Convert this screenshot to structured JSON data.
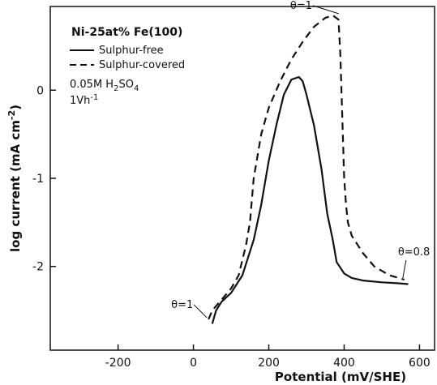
{
  "chart_data": {
    "type": "line",
    "title": "",
    "xlabel": "Potential (mV/SHE)",
    "ylabel_main": "log current (mA cm",
    "ylabel_sup": "-2",
    "ylabel_end": ")",
    "xlim": [
      -380,
      640
    ],
    "ylim": [
      -2.95,
      0.95
    ],
    "x_ticks": [
      -200,
      0,
      200,
      400,
      600
    ],
    "x_tick_labels": [
      "-200",
      "0",
      "200",
      "400",
      "600"
    ],
    "y_ticks": [
      0,
      -1,
      -2
    ],
    "y_tick_labels": [
      "0",
      "-1",
      "-2"
    ],
    "grid": false,
    "legend": {
      "placement": "top-left",
      "title": "Ni-25at% Fe(100)",
      "entries": [
        {
          "label": "Sulphur-free",
          "style": "solid"
        },
        {
          "label": "Sulphur-covered",
          "style": "dashed"
        }
      ],
      "conditions": [
        {
          "text": "0.05M H",
          "sub": "2",
          "rest": "SO",
          "sub2": "4"
        },
        {
          "text": "1Vh",
          "sup": "-1"
        }
      ]
    },
    "series": [
      {
        "name": "Sulphur-free",
        "style": "solid",
        "x": [
          50,
          60,
          75,
          100,
          130,
          160,
          180,
          200,
          220,
          240,
          260,
          280,
          290,
          300,
          320,
          340,
          355,
          370,
          380,
          400,
          420,
          450,
          500,
          540,
          570
        ],
        "y": [
          -2.65,
          -2.5,
          -2.4,
          -2.3,
          -2.1,
          -1.7,
          -1.3,
          -0.8,
          -0.4,
          -0.05,
          0.12,
          0.15,
          0.1,
          -0.05,
          -0.4,
          -0.9,
          -1.4,
          -1.7,
          -1.95,
          -2.08,
          -2.13,
          -2.16,
          -2.18,
          -2.19,
          -2.2
        ]
      },
      {
        "name": "Sulphur-covered",
        "style": "dashed",
        "x": [
          40,
          50,
          60,
          80,
          100,
          120,
          140,
          150,
          160,
          180,
          200,
          230,
          260,
          290,
          320,
          350,
          370,
          385,
          390,
          400,
          405,
          410,
          420,
          450,
          480,
          520,
          560
        ],
        "y": [
          -2.6,
          -2.5,
          -2.45,
          -2.35,
          -2.25,
          -2.1,
          -1.75,
          -1.5,
          -1.0,
          -0.5,
          -0.2,
          0.1,
          0.35,
          0.55,
          0.72,
          0.82,
          0.85,
          0.8,
          0.4,
          -1.0,
          -1.3,
          -1.5,
          -1.65,
          -1.85,
          -2.0,
          -2.1,
          -2.15
        ]
      }
    ],
    "annotations": [
      {
        "text": "θ=1",
        "at": [
          390,
          0.85
        ],
        "series": "Sulphur-covered"
      },
      {
        "text": "θ=1",
        "at": [
          40,
          -2.6
        ],
        "series": "Sulphur-covered"
      },
      {
        "text": "θ=0.8",
        "at": [
          560,
          -2.15
        ],
        "series": "Sulphur-covered"
      }
    ]
  }
}
